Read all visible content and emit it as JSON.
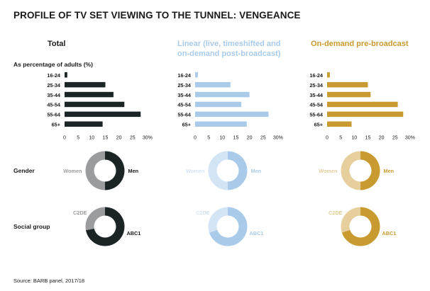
{
  "title": "PROFILE OF TV SET VIEWING TO THE TUNNEL: VENGEANCE",
  "subtitle": "As percentage of adults (%)",
  "source": "Source: BARB panel, 2017/18",
  "row_labels": {
    "gender": "Gender",
    "social": "Social group"
  },
  "colors": {
    "total": "#1c2526",
    "total_light": "#9a9c9e",
    "linear": "#a9cbe9",
    "linear_light": "#d3e4f4",
    "ondemand": "#c99a2f",
    "ondemand_light": "#e6cf9c"
  },
  "panels": [
    {
      "id": "total",
      "title": "Total"
    },
    {
      "id": "linear",
      "title": "Linear (live, timeshifted and on-demand post-broadcast)"
    },
    {
      "id": "ondemand",
      "title": "On-demand pre-broadcast"
    }
  ],
  "chart_data": [
    {
      "type": "bar",
      "orientation": "horizontal",
      "panel": "Total",
      "categories": [
        "16-24",
        "25-34",
        "35-44",
        "45-54",
        "55-64",
        "65+"
      ],
      "values": [
        1,
        15,
        18,
        22,
        28,
        14
      ],
      "xlim": [
        0,
        30
      ],
      "xticks": [
        "0",
        "5",
        "10",
        "15",
        "20",
        "25",
        "30%"
      ]
    },
    {
      "type": "bar",
      "orientation": "horizontal",
      "panel": "Linear (live, timeshifted and on-demand post-broadcast)",
      "categories": [
        "16-24",
        "25-34",
        "35-44",
        "45-54",
        "55-64",
        "65+"
      ],
      "values": [
        1,
        13,
        20,
        17,
        27,
        19
      ],
      "xlim": [
        0,
        30
      ],
      "xticks": [
        "0",
        "5",
        "10",
        "15",
        "20",
        "25",
        "30%"
      ]
    },
    {
      "type": "bar",
      "orientation": "horizontal",
      "panel": "On-demand pre-broadcast",
      "categories": [
        "16-24",
        "25-34",
        "35-44",
        "45-54",
        "55-64",
        "65+"
      ],
      "values": [
        1,
        15,
        16,
        26,
        28,
        9
      ],
      "xlim": [
        0,
        30
      ],
      "xticks": [
        "0",
        "5",
        "10",
        "15",
        "20",
        "25",
        "30%"
      ]
    },
    {
      "type": "pie",
      "panel": "Total",
      "group": "Gender",
      "labels": [
        "Men",
        "Women"
      ],
      "values": [
        50,
        50
      ]
    },
    {
      "type": "pie",
      "panel": "Linear (live, timeshifted and on-demand post-broadcast)",
      "group": "Gender",
      "labels": [
        "Men",
        "Women"
      ],
      "values": [
        50,
        50
      ]
    },
    {
      "type": "pie",
      "panel": "On-demand pre-broadcast",
      "group": "Gender",
      "labels": [
        "Men",
        "Women"
      ],
      "values": [
        50,
        50
      ]
    },
    {
      "type": "pie",
      "panel": "Total",
      "group": "Social group",
      "labels": [
        "ABC1",
        "C2DE"
      ],
      "values": [
        72,
        28
      ]
    },
    {
      "type": "pie",
      "panel": "Linear (live, timeshifted and on-demand post-broadcast)",
      "group": "Social group",
      "labels": [
        "ABC1",
        "C2DE"
      ],
      "values": [
        70,
        30
      ]
    },
    {
      "type": "pie",
      "panel": "On-demand pre-broadcast",
      "group": "Social group",
      "labels": [
        "ABC1",
        "C2DE"
      ],
      "values": [
        70,
        30
      ]
    }
  ]
}
